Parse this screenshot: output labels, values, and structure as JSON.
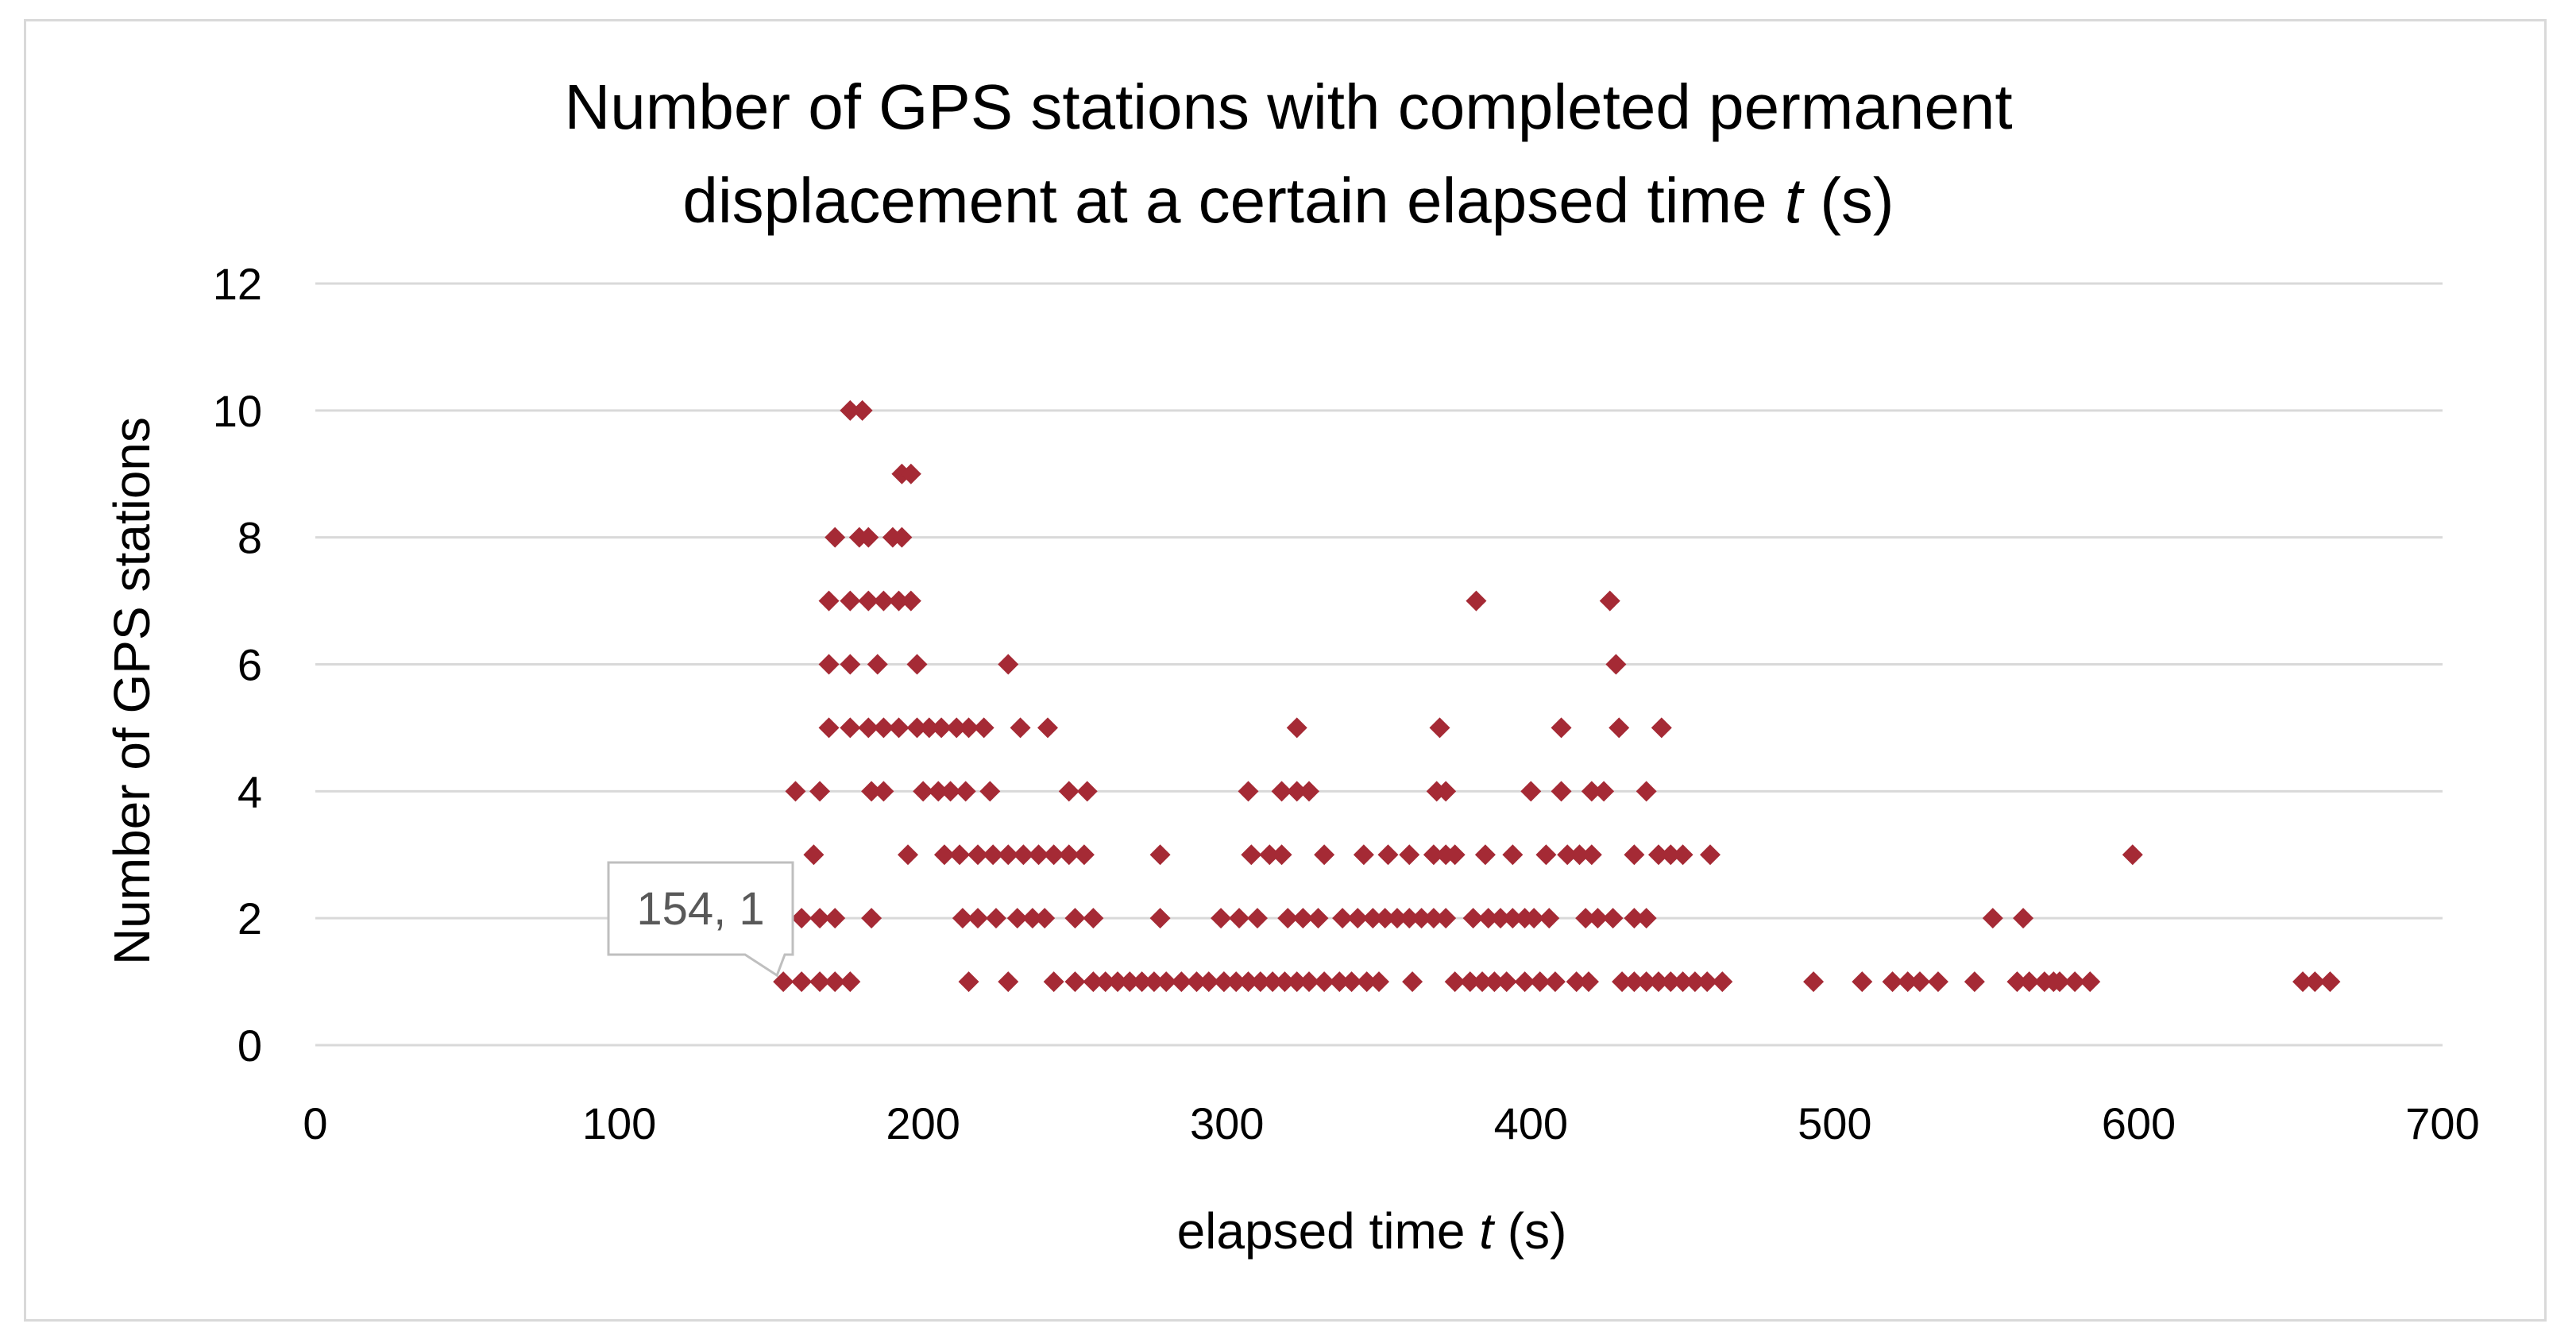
{
  "chart_data": {
    "type": "scatter",
    "title_lines": [
      [
        "Number of GPS stations with completed permanent"
      ],
      [
        "displacement at a certain elapsed time ",
        {
          "italic": "t"
        },
        " (s)"
      ]
    ],
    "title_text": "Number of GPS stations with completed permanent displacement at a certain elapsed time t (s)",
    "xlabel": "elapsed time t (s)",
    "xlabel_parts": [
      "elapsed time ",
      "t",
      " (s)"
    ],
    "ylabel": "Number of GPS stations",
    "xlim": [
      0,
      700
    ],
    "ylim": [
      0,
      12
    ],
    "xticks": [
      0,
      100,
      200,
      300,
      400,
      500,
      600,
      700
    ],
    "yticks": [
      0,
      2,
      4,
      6,
      8,
      10,
      12
    ],
    "grid": "horizontal",
    "legend": "none",
    "marker": "diamond",
    "color": "#a52a35",
    "annotation": {
      "text": "154, 1",
      "x": 154,
      "y": 1
    },
    "points": [
      [
        154,
        1
      ],
      [
        160,
        1
      ],
      [
        166,
        1
      ],
      [
        171,
        1
      ],
      [
        176,
        1
      ],
      [
        160,
        2
      ],
      [
        166,
        2
      ],
      [
        171,
        2
      ],
      [
        164,
        3
      ],
      [
        158,
        4
      ],
      [
        166,
        4
      ],
      [
        169,
        5
      ],
      [
        176,
        5
      ],
      [
        182,
        5
      ],
      [
        187,
        5
      ],
      [
        192,
        5
      ],
      [
        198,
        5
      ],
      [
        169,
        6
      ],
      [
        176,
        6
      ],
      [
        185,
        6
      ],
      [
        198,
        6
      ],
      [
        169,
        7
      ],
      [
        176,
        7
      ],
      [
        182,
        7
      ],
      [
        187,
        7
      ],
      [
        192,
        7
      ],
      [
        196,
        7
      ],
      [
        171,
        8
      ],
      [
        179,
        8
      ],
      [
        182,
        8
      ],
      [
        190,
        8
      ],
      [
        193,
        8
      ],
      [
        193,
        9
      ],
      [
        196,
        9
      ],
      [
        176,
        10
      ],
      [
        180,
        10
      ],
      [
        183,
        2
      ],
      [
        183,
        4
      ],
      [
        187,
        4
      ],
      [
        195,
        3
      ],
      [
        200,
        4
      ],
      [
        205,
        4
      ],
      [
        209,
        4
      ],
      [
        214,
        4
      ],
      [
        222,
        4
      ],
      [
        202,
        5
      ],
      [
        206,
        5
      ],
      [
        211,
        5
      ],
      [
        215,
        5
      ],
      [
        220,
        5
      ],
      [
        207,
        3
      ],
      [
        212,
        3
      ],
      [
        218,
        3
      ],
      [
        223,
        3
      ],
      [
        228,
        3
      ],
      [
        233,
        3
      ],
      [
        238,
        3
      ],
      [
        243,
        3
      ],
      [
        248,
        3
      ],
      [
        253,
        3
      ],
      [
        213,
        2
      ],
      [
        218,
        2
      ],
      [
        224,
        2
      ],
      [
        231,
        2
      ],
      [
        236,
        2
      ],
      [
        240,
        2
      ],
      [
        250,
        2
      ],
      [
        256,
        2
      ],
      [
        215,
        1
      ],
      [
        228,
        1
      ],
      [
        243,
        1
      ],
      [
        228,
        6
      ],
      [
        232,
        5
      ],
      [
        241,
        5
      ],
      [
        248,
        4
      ],
      [
        254,
        4
      ],
      [
        250,
        1
      ],
      [
        256,
        1
      ],
      [
        260,
        1
      ],
      [
        264,
        1
      ],
      [
        268,
        1
      ],
      [
        272,
        1
      ],
      [
        276,
        1
      ],
      [
        280,
        1
      ],
      [
        285,
        1
      ],
      [
        290,
        1
      ],
      [
        294,
        1
      ],
      [
        299,
        1
      ],
      [
        278,
        2
      ],
      [
        278,
        3
      ],
      [
        298,
        2
      ],
      [
        304,
        2
      ],
      [
        310,
        2
      ],
      [
        299,
        1
      ],
      [
        303,
        1
      ],
      [
        307,
        1
      ],
      [
        311,
        1
      ],
      [
        315,
        1
      ],
      [
        319,
        1
      ],
      [
        323,
        1
      ],
      [
        327,
        1
      ],
      [
        332,
        1
      ],
      [
        337,
        1
      ],
      [
        341,
        1
      ],
      [
        346,
        1
      ],
      [
        350,
        1
      ],
      [
        307,
        4
      ],
      [
        318,
        4
      ],
      [
        323,
        4
      ],
      [
        327,
        4
      ],
      [
        308,
        3
      ],
      [
        314,
        3
      ],
      [
        318,
        3
      ],
      [
        320,
        2
      ],
      [
        325,
        2
      ],
      [
        330,
        2
      ],
      [
        323,
        5
      ],
      [
        332,
        3
      ],
      [
        338,
        2
      ],
      [
        343,
        2
      ],
      [
        348,
        2
      ],
      [
        352,
        2
      ],
      [
        356,
        2
      ],
      [
        360,
        2
      ],
      [
        364,
        2
      ],
      [
        368,
        2
      ],
      [
        372,
        2
      ],
      [
        345,
        3
      ],
      [
        353,
        3
      ],
      [
        360,
        3
      ],
      [
        361,
        1
      ],
      [
        368,
        3
      ],
      [
        372,
        3
      ],
      [
        375,
        3
      ],
      [
        369,
        4
      ],
      [
        372,
        4
      ],
      [
        370,
        5
      ],
      [
        375,
        1
      ],
      [
        380,
        1
      ],
      [
        384,
        1
      ],
      [
        388,
        1
      ],
      [
        392,
        1
      ],
      [
        381,
        2
      ],
      [
        386,
        2
      ],
      [
        390,
        2
      ],
      [
        394,
        2
      ],
      [
        398,
        2
      ],
      [
        382,
        7
      ],
      [
        385,
        3
      ],
      [
        394,
        3
      ],
      [
        400,
        4
      ],
      [
        410,
        4
      ],
      [
        398,
        1
      ],
      [
        403,
        1
      ],
      [
        408,
        1
      ],
      [
        401,
        2
      ],
      [
        406,
        2
      ],
      [
        405,
        3
      ],
      [
        412,
        3
      ],
      [
        416,
        3
      ],
      [
        420,
        3
      ],
      [
        410,
        5
      ],
      [
        415,
        1
      ],
      [
        419,
        1
      ],
      [
        418,
        2
      ],
      [
        422,
        2
      ],
      [
        427,
        2
      ],
      [
        420,
        4
      ],
      [
        424,
        4
      ],
      [
        426,
        7
      ],
      [
        428,
        6
      ],
      [
        429,
        5
      ],
      [
        430,
        1
      ],
      [
        434,
        1
      ],
      [
        438,
        1
      ],
      [
        442,
        1
      ],
      [
        446,
        1
      ],
      [
        450,
        1
      ],
      [
        454,
        1
      ],
      [
        458,
        1
      ],
      [
        463,
        1
      ],
      [
        434,
        2
      ],
      [
        438,
        2
      ],
      [
        434,
        3
      ],
      [
        442,
        3
      ],
      [
        446,
        3
      ],
      [
        450,
        3
      ],
      [
        438,
        4
      ],
      [
        443,
        5
      ],
      [
        459,
        3
      ],
      [
        493,
        1
      ],
      [
        509,
        1
      ],
      [
        519,
        1
      ],
      [
        524,
        1
      ],
      [
        528,
        1
      ],
      [
        534,
        1
      ],
      [
        546,
        1
      ],
      [
        552,
        2
      ],
      [
        562,
        2
      ],
      [
        560,
        1
      ],
      [
        564,
        1
      ],
      [
        569,
        1
      ],
      [
        572,
        1
      ],
      [
        574,
        1
      ],
      [
        579,
        1
      ],
      [
        584,
        1
      ],
      [
        598,
        3
      ],
      [
        654,
        1
      ],
      [
        658,
        1
      ],
      [
        663,
        1
      ]
    ]
  }
}
